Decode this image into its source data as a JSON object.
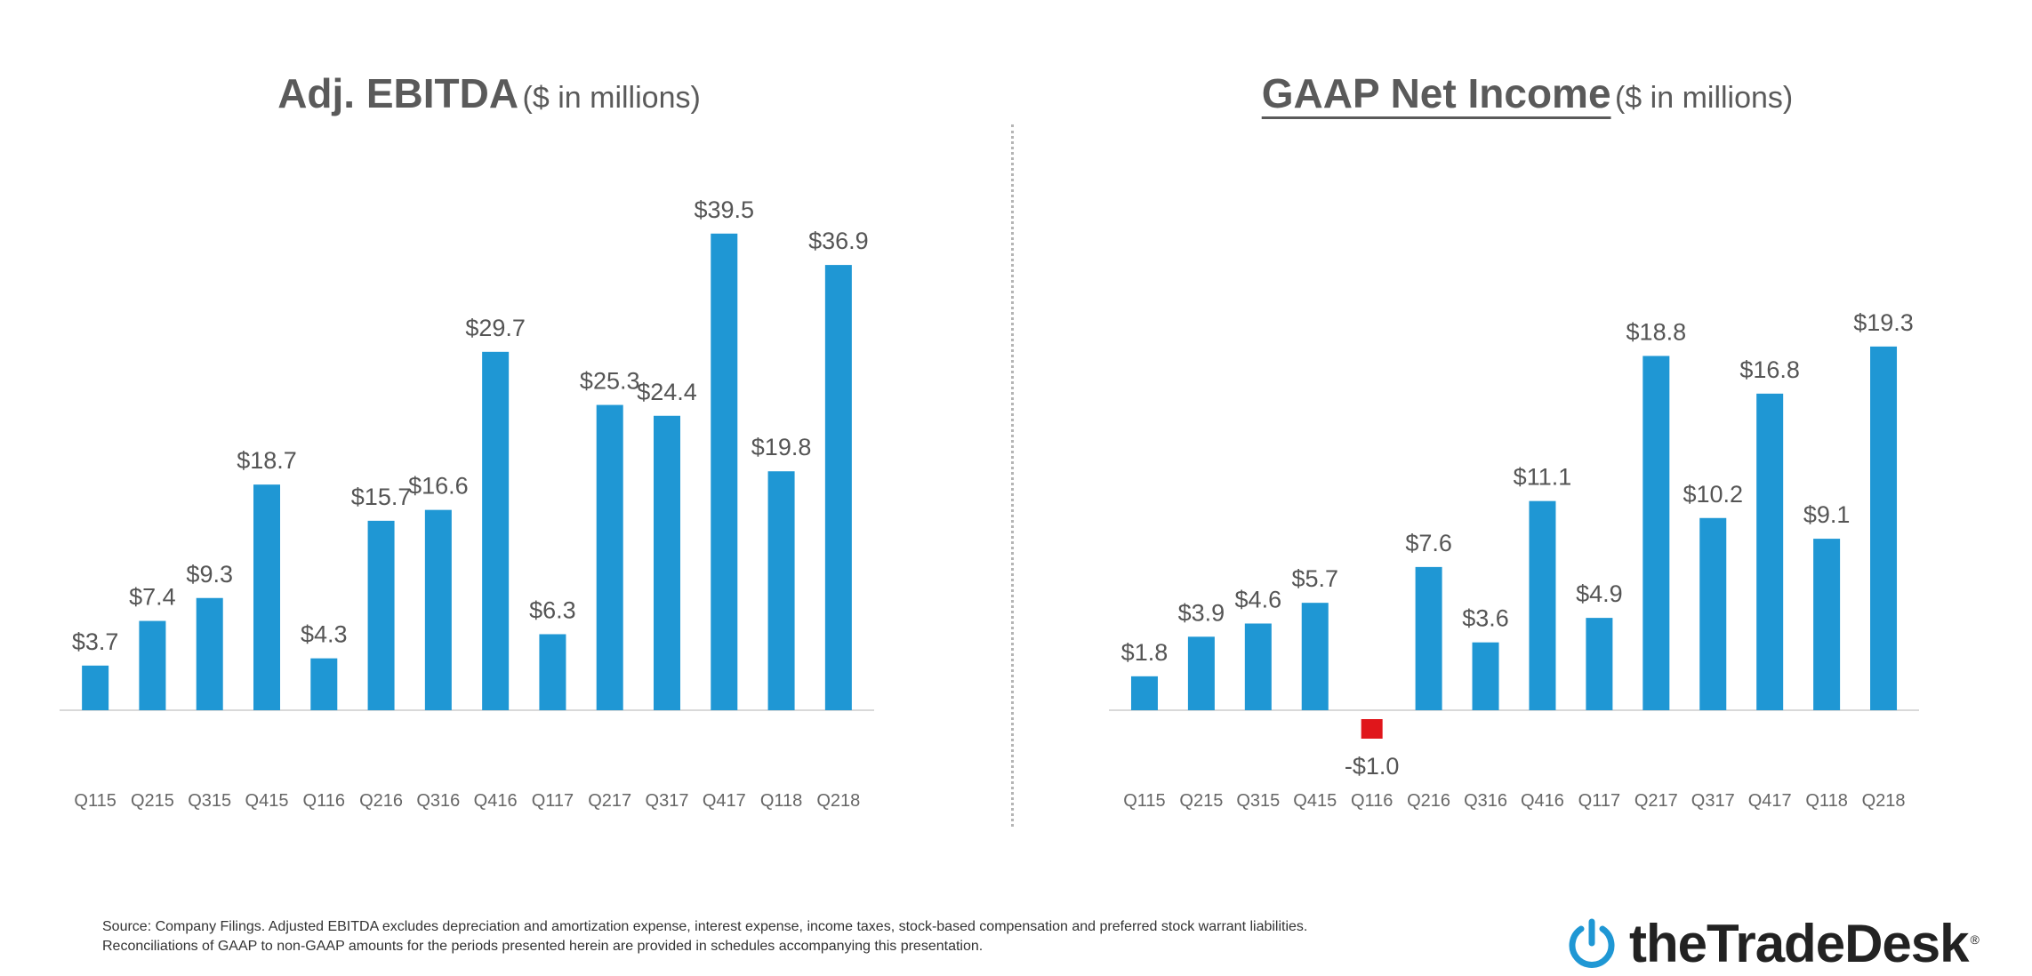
{
  "chart_data": [
    {
      "type": "bar",
      "title": "Adj. EBITDA",
      "subtitle": "($ in millions)",
      "categories": [
        "Q115",
        "Q215",
        "Q315",
        "Q415",
        "Q116",
        "Q216",
        "Q316",
        "Q416",
        "Q117",
        "Q217",
        "Q317",
        "Q417",
        "Q118",
        "Q218"
      ],
      "values": [
        3.7,
        7.4,
        9.3,
        18.7,
        4.3,
        15.7,
        16.6,
        29.7,
        6.3,
        25.3,
        24.4,
        39.5,
        19.8,
        36.9
      ],
      "value_labels": [
        "$3.7",
        "$7.4",
        "$9.3",
        "$18.7",
        "$4.3",
        "$15.7",
        "$16.6",
        "$29.7",
        "$6.3",
        "$25.3",
        "$24.4",
        "$39.5",
        "$19.8",
        "$36.9"
      ],
      "ylim": [
        0,
        40
      ],
      "grid": false,
      "bar_color": "#1f97d4"
    },
    {
      "type": "bar",
      "title": "GAAP Net Income",
      "subtitle": "($ in millions)",
      "categories": [
        "Q115",
        "Q215",
        "Q315",
        "Q415",
        "Q116",
        "Q216",
        "Q316",
        "Q416",
        "Q117",
        "Q217",
        "Q317",
        "Q417",
        "Q118",
        "Q218"
      ],
      "values": [
        1.8,
        3.9,
        4.6,
        5.7,
        -1.0,
        7.6,
        3.6,
        11.1,
        4.9,
        18.8,
        10.2,
        16.8,
        9.1,
        19.3
      ],
      "value_labels": [
        "$1.8",
        "$3.9",
        "$4.6",
        "$5.7",
        "-$1.0",
        "$7.6",
        "$3.6",
        "$11.1",
        "$4.9",
        "$18.8",
        "$10.2",
        "$16.8",
        "$9.1",
        "$19.3"
      ],
      "ylim": [
        -1.5,
        20
      ],
      "grid": false,
      "bar_color": "#1f97d4",
      "negative_color": "#e0161b"
    }
  ],
  "footnote": "Source: Company Filings. Adjusted EBITDA excludes depreciation and amortization expense, interest expense, income taxes, stock-based compensation and preferred stock warrant liabilities. Reconciliations of GAAP to non-GAAP amounts for the periods presented herein are provided in schedules accompanying this presentation.",
  "logo": {
    "text": "theTradeDesk",
    "reg": "®",
    "icon": "power-icon",
    "color": "#1f97d4"
  }
}
